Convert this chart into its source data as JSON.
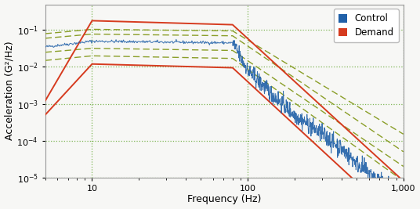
{
  "title": "",
  "xlabel": "Frequency (Hz)",
  "ylabel": "Acceleration (G²/Hz)",
  "xlim": [
    5,
    1000
  ],
  "ylim": [
    1e-05,
    0.5
  ],
  "background_color": "#f7f7f5",
  "grid_color": "#6aab3a",
  "demand_color": "#d63b1f",
  "control_color": "#2060a8",
  "tolerance_color": "#8a9e28",
  "legend_control": "Control",
  "legend_demand": "Demand",
  "demand_upper_freq": [
    5,
    10,
    80,
    1000
  ],
  "demand_upper_psd": [
    0.0012,
    0.18,
    0.14,
    8e-06
  ],
  "demand_lower_freq": [
    5,
    10,
    80,
    1000
  ],
  "demand_lower_psd": [
    0.0005,
    0.012,
    0.0095,
    5e-07
  ],
  "control_flat_freq": [
    5,
    10,
    80
  ],
  "control_flat_psd": [
    0.035,
    0.05,
    0.045
  ],
  "control_slope_freq": [
    80,
    100,
    150,
    200,
    300,
    400,
    500,
    700,
    1000
  ],
  "control_slope_psd": [
    0.045,
    0.008,
    0.0015,
    0.0005,
    0.00015,
    6e-05,
    2.5e-05,
    8e-06,
    3e-06
  ],
  "tol_u1_freq": [
    5,
    10,
    80,
    1000
  ],
  "tol_u1_psd": [
    0.08,
    0.105,
    0.095,
    0.00015
  ],
  "tol_u2_freq": [
    5,
    10,
    80,
    1000
  ],
  "tol_u2_psd": [
    0.06,
    0.078,
    0.07,
    5e-05
  ],
  "tol_l1_freq": [
    5,
    10,
    80,
    1000
  ],
  "tol_l1_psd": [
    0.025,
    0.032,
    0.028,
    2e-05
  ],
  "tol_l2_freq": [
    5,
    10,
    80,
    1000
  ],
  "tol_l2_psd": [
    0.015,
    0.02,
    0.017,
    8e-06
  ]
}
